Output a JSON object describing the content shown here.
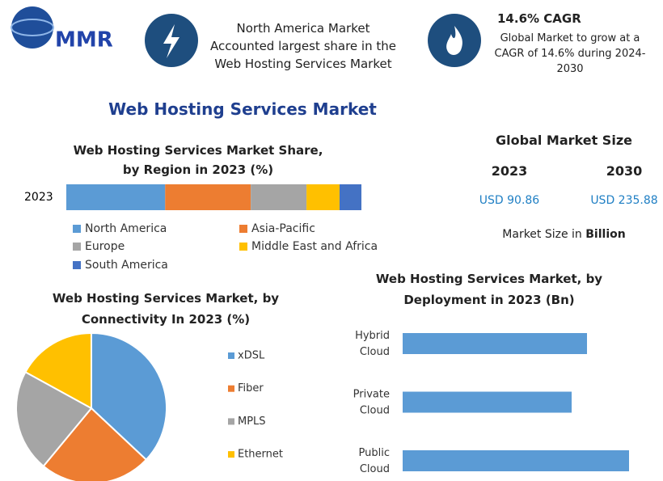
{
  "header": {
    "logo": "MMR",
    "fact": "North America Market Accounted largest share in the Web Hosting Services Market",
    "cagr_title": "14.6% CAGR",
    "cagr_text": "Global Market to grow at a CAGR of 14.6% during 2024-2030"
  },
  "title": "Web Hosting Services Market",
  "market_size": {
    "title": "Global Market Size",
    "years": [
      "2023",
      "2030"
    ],
    "values": [
      "USD 90.86",
      "USD 235.88"
    ],
    "note": "Market Size in",
    "note_bold": "Billion"
  },
  "chart_data": [
    {
      "type": "stacked-bar",
      "title": "Web Hosting Services Market Share, by Region in 2023 (%)",
      "categories": [
        "2023"
      ],
      "series": [
        {
          "name": "North America",
          "color": "#5b9bd5",
          "values": [
            33.5
          ]
        },
        {
          "name": "Asia-Pacific",
          "color": "#ed7d31",
          "values": [
            29
          ]
        },
        {
          "name": "Europe",
          "color": "#a5a5a5",
          "values": [
            18.9
          ]
        },
        {
          "name": "Middle East and Africa",
          "color": "#ffc000",
          "values": [
            11.2
          ]
        },
        {
          "name": "South America",
          "color": "#4472c4",
          "values": [
            7.4
          ]
        }
      ]
    },
    {
      "type": "pie",
      "title": "Web Hosting Services Market, by Connectivity In 2023 (%)",
      "categories": [
        "xDSL",
        "Fiber",
        "MPLS",
        "Ethernet"
      ],
      "values": [
        37,
        24,
        22,
        17
      ],
      "colors": [
        "#5b9bd5",
        "#ed7d31",
        "#a5a5a5",
        "#ffc000"
      ]
    },
    {
      "type": "hbar",
      "title": "Web Hosting Services Market, by Deployment in 2023 (Bn)",
      "categories": [
        "Hybrid Cloud",
        "Private Cloud",
        "Public Cloud"
      ],
      "values": [
        22.8,
        20.9,
        28
      ],
      "color": "#5b9bd5"
    }
  ]
}
